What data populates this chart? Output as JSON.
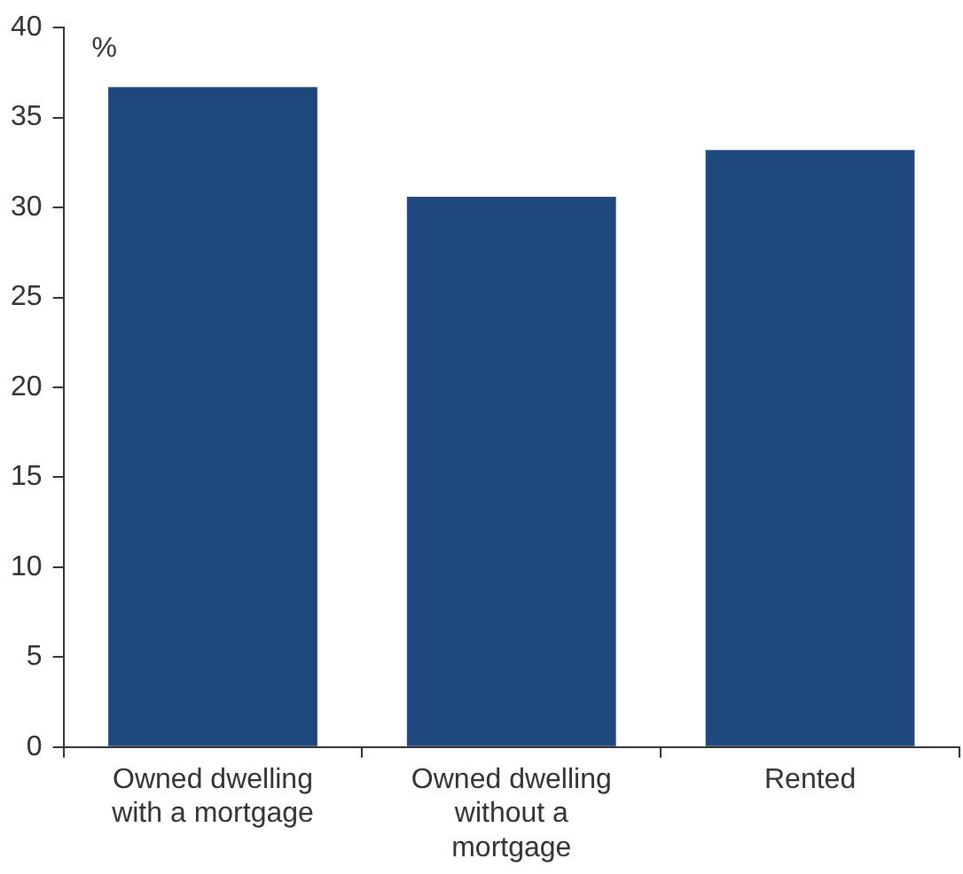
{
  "chart_data": {
    "type": "bar",
    "ylabel": "%",
    "categories": [
      "Owned dwelling with a mortgage",
      "Owned dwelling without a mortgage",
      "Rented"
    ],
    "values": [
      36.7,
      30.6,
      33.2
    ],
    "color": "#1f497d",
    "ylim": [
      0,
      40
    ],
    "yticks": [
      0,
      5,
      10,
      15,
      20,
      25,
      30,
      35,
      40
    ],
    "grid": false,
    "legend": false
  }
}
